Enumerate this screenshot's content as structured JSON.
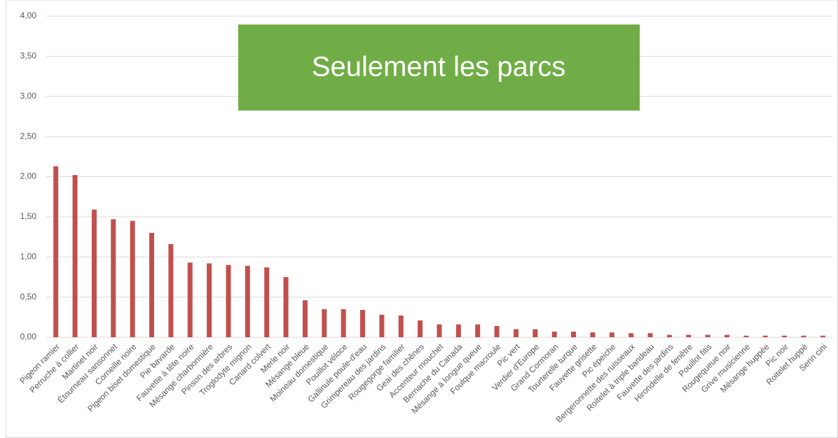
{
  "chart_data": {
    "type": "bar",
    "title": "Seulement les parcs",
    "categories": [
      "Pigeon ramier",
      "Perruche à collier",
      "Martinet noir",
      "Étourneau sansonnet",
      "Corneille noire",
      "Pigeon biset domestique",
      "Pie bavarde",
      "Fauvette à tête noire",
      "Mésange charbonnière",
      "Pinson des arbres",
      "Troglodyte mignon",
      "Canard colvert",
      "Merle noir",
      "Mésange bleue",
      "Moineau domestique",
      "Pouillot véloce",
      "Gallinule poule-d'eau",
      "Grimpereau des jardins",
      "Rougegorge familier",
      "Geai des chênes",
      "Accenteur mouchet",
      "Bernache du Canada",
      "Mésange à longue queue",
      "Foulque macroule",
      "Pic vert",
      "Verdier d'Europe",
      "Grand Cormoran",
      "Tourterelle turque",
      "Fauvette grisette",
      "Pic épeiche",
      "Bergeronnette des ruisseaux",
      "Roitelet à triple bandeau",
      "Fauvette des jardins",
      "Hirondelle de fenêtre",
      "Pouillot fitis",
      "Rougequeue noir",
      "Grive musicienne",
      "Mésange huppée",
      "Pic noir",
      "Roitelet huppé",
      "Serin cini"
    ],
    "values": [
      2.13,
      2.02,
      1.59,
      1.47,
      1.45,
      1.3,
      1.16,
      0.93,
      0.92,
      0.9,
      0.89,
      0.87,
      0.75,
      0.46,
      0.35,
      0.35,
      0.34,
      0.28,
      0.27,
      0.21,
      0.16,
      0.16,
      0.16,
      0.14,
      0.1,
      0.1,
      0.07,
      0.07,
      0.06,
      0.06,
      0.05,
      0.05,
      0.03,
      0.03,
      0.03,
      0.03,
      0.02,
      0.02,
      0.02,
      0.02,
      0.02
    ],
    "color": "#c0504d",
    "ylim": [
      0,
      4
    ],
    "yticks": [
      {
        "value": 0,
        "label": "0,00"
      },
      {
        "value": 0.5,
        "label": "0,50"
      },
      {
        "value": 1,
        "label": "1,00"
      },
      {
        "value": 1.5,
        "label": "1,50"
      },
      {
        "value": 2,
        "label": "2,00"
      },
      {
        "value": 2.5,
        "label": "2,50"
      },
      {
        "value": 3,
        "label": "3,00"
      },
      {
        "value": 3.5,
        "label": "3,50"
      },
      {
        "value": 4,
        "label": "4,00"
      }
    ],
    "grid": true
  }
}
